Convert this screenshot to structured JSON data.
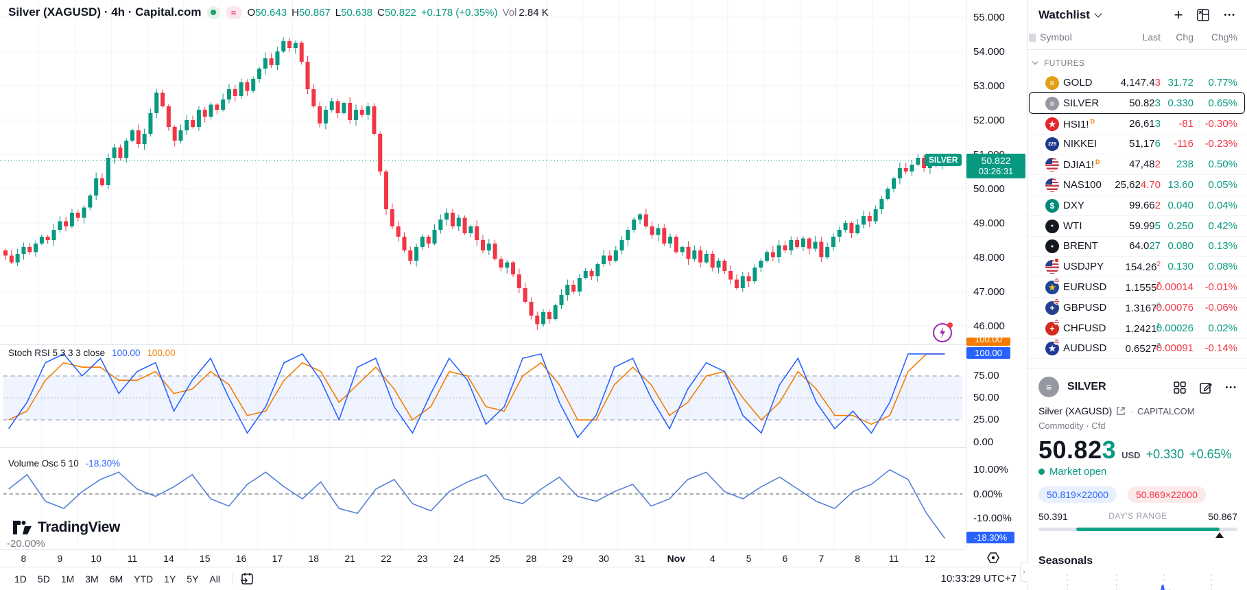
{
  "colors": {
    "up": "#089981",
    "down": "#f23645",
    "stoch_k": "#2962ff",
    "stoch_d": "#f57c00",
    "vol_line": "#5480d6",
    "grid": "#f0f3fa",
    "axis_line": "#e0e3eb",
    "text": "#131722",
    "muted": "#787b86",
    "band_fill": "rgba(41,98,255,0.07)",
    "blue_label": "#2962ff",
    "orange_label": "#f57c00"
  },
  "header": {
    "title": "Silver (XAGUSD) · 4h · Capital.com",
    "approx_glyph": "≈",
    "ohlc": [
      {
        "k": "O",
        "v": "50.643"
      },
      {
        "k": "H",
        "v": "50.867"
      },
      {
        "k": "L",
        "v": "50.638"
      },
      {
        "k": "C",
        "v": "50.822"
      }
    ],
    "change": "+0.178 (+0.35%)",
    "vol_label": "Vol",
    "vol_value": "2.84 K"
  },
  "chart_data": [
    {
      "id": "price",
      "type": "candlestick",
      "symbol": "SILVER",
      "timeframe": "4h",
      "ylim": [
        45.5,
        55.5
      ],
      "y_labels": [
        "55.000",
        "54.000",
        "53.000",
        "52.000",
        "51.000",
        "50.000",
        "49.000",
        "48.000",
        "47.000",
        "46.000"
      ],
      "last_price": "50.822",
      "countdown": "03:26:31",
      "last_price_value": 50.822,
      "first_open": 48.2,
      "closes": [
        48.05,
        47.85,
        48.1,
        48.3,
        48.15,
        48.4,
        48.6,
        48.5,
        48.8,
        49.05,
        48.9,
        49.3,
        49.15,
        49.45,
        49.8,
        50.3,
        50.1,
        50.9,
        51.2,
        50.9,
        51.4,
        51.7,
        51.3,
        51.6,
        52.2,
        52.8,
        52.4,
        51.8,
        51.4,
        51.7,
        52.0,
        51.8,
        52.3,
        52.1,
        52.45,
        52.3,
        52.6,
        52.9,
        52.7,
        53.1,
        52.85,
        53.2,
        53.5,
        53.8,
        53.6,
        54.0,
        54.3,
        54.1,
        54.25,
        53.7,
        52.9,
        52.4,
        51.9,
        52.3,
        52.55,
        52.2,
        52.5,
        52.0,
        52.3,
        52.15,
        52.4,
        51.6,
        50.5,
        49.4,
        48.9,
        48.6,
        48.2,
        47.9,
        48.3,
        48.6,
        48.4,
        48.8,
        49.1,
        49.3,
        48.9,
        49.15,
        48.7,
        48.9,
        48.5,
        48.2,
        48.4,
        47.95,
        47.7,
        47.85,
        47.5,
        47.1,
        46.7,
        46.3,
        46.05,
        46.4,
        46.2,
        46.6,
        46.9,
        47.2,
        47.0,
        47.4,
        47.6,
        47.45,
        47.8,
        48.05,
        47.9,
        48.2,
        48.5,
        48.8,
        49.1,
        49.25,
        48.9,
        48.65,
        48.85,
        48.4,
        48.6,
        48.15,
        48.3,
        47.95,
        48.2,
        47.85,
        48.1,
        47.7,
        47.9,
        47.6,
        47.35,
        47.1,
        47.45,
        47.3,
        47.7,
        47.9,
        48.15,
        48.0,
        48.35,
        48.2,
        48.5,
        48.3,
        48.55,
        48.25,
        48.45,
        48.0,
        48.3,
        48.6,
        48.8,
        49.0,
        48.7,
        48.95,
        49.2,
        49.05,
        49.4,
        49.7,
        50.0,
        50.3,
        50.6,
        50.5,
        50.7,
        50.9,
        50.6,
        50.75,
        50.7,
        50.822
      ]
    },
    {
      "id": "stoch_rsi",
      "type": "line",
      "title": "Stoch RSI 5 3 3 3 close",
      "k_value": "100.00",
      "d_value": "100.00",
      "range": [
        0,
        100
      ],
      "bands": {
        "upper": 75,
        "mid": 50,
        "lower": 25
      },
      "axis_labels": [
        "75.00",
        "50.00",
        "25.00",
        "0.00"
      ],
      "k_label": "100.00",
      "d_label": "100.00",
      "k": [
        15,
        45,
        90,
        100,
        75,
        95,
        55,
        80,
        90,
        35,
        70,
        95,
        50,
        10,
        40,
        90,
        100,
        70,
        25,
        85,
        95,
        40,
        10,
        55,
        95,
        70,
        20,
        40,
        95,
        100,
        45,
        5,
        30,
        85,
        95,
        50,
        15,
        60,
        90,
        80,
        30,
        10,
        65,
        95,
        45,
        15,
        35,
        10,
        45,
        100,
        100,
        100
      ],
      "d": [
        25,
        35,
        70,
        90,
        85,
        85,
        70,
        70,
        80,
        55,
        60,
        80,
        65,
        30,
        35,
        70,
        90,
        80,
        45,
        65,
        85,
        60,
        25,
        40,
        80,
        75,
        40,
        35,
        75,
        90,
        65,
        25,
        25,
        65,
        85,
        65,
        30,
        45,
        75,
        80,
        50,
        25,
        45,
        80,
        60,
        30,
        30,
        20,
        30,
        80,
        100,
        100
      ]
    },
    {
      "id": "volume_osc",
      "type": "line",
      "title": "Volume Osc 5 10",
      "current_label": "-18.30%",
      "current": -18.3,
      "axis_labels": [
        "10.00%",
        "0.00%",
        "-10.00%"
      ],
      "hidden_label": "-20.00%",
      "values": [
        2,
        8,
        -3,
        -6,
        1,
        6,
        9,
        2,
        -1,
        3,
        8,
        -2,
        -5,
        4,
        9,
        3,
        -2,
        5,
        -6,
        -8,
        2,
        6,
        -4,
        -7,
        1,
        5,
        8,
        -2,
        -4,
        2,
        7,
        -1,
        -3,
        1,
        4,
        -5,
        -2,
        6,
        9,
        1,
        -2,
        3,
        7,
        2,
        -3,
        -6,
        1,
        4,
        10,
        6,
        -8,
        -18.3
      ]
    }
  ],
  "time_axis": {
    "labels": [
      "8",
      "9",
      "10",
      "11",
      "14",
      "15",
      "16",
      "17",
      "18",
      "21",
      "22",
      "23",
      "24",
      "25",
      "28",
      "29",
      "30",
      "31",
      "Nov",
      "4",
      "5",
      "6",
      "7",
      "8",
      "11",
      "12"
    ],
    "bold_label": "Nov"
  },
  "toolbar": {
    "ranges": [
      "1D",
      "5D",
      "1M",
      "3M",
      "6M",
      "YTD",
      "1Y",
      "5Y",
      "All"
    ],
    "clock": "10:33:29 UTC+7"
  },
  "footer": {
    "logo_text": "TradingView"
  },
  "watchlist": {
    "title": "Watchlist",
    "icons": {
      "plus": "+",
      "more": "•••"
    },
    "columns": {
      "symbol": "Symbol",
      "last": "Last",
      "chg": "Chg",
      "chgp": "Chg%"
    },
    "section": "FUTURES",
    "rows": [
      {
        "symbol": "GOLD",
        "icon": {
          "kind": "circle",
          "bg": "#dfa018",
          "glyph": "≡"
        },
        "last": "4,147.4",
        "tail": "3",
        "tail_dir": "down",
        "sup": false,
        "chg": "31.72",
        "chgp": "0.77%",
        "dir": "up",
        "selected": false,
        "badge": ""
      },
      {
        "symbol": "SILVER",
        "icon": {
          "kind": "circle",
          "bg": "#9598a1",
          "glyph": "≡"
        },
        "last": "50.82",
        "tail": "3",
        "tail_dir": "up",
        "sup": false,
        "chg": "0.330",
        "chgp": "0.65%",
        "dir": "up",
        "selected": true,
        "badge": ""
      },
      {
        "symbol": "HSI1!",
        "icon": {
          "kind": "circle",
          "bg": "#e4252d",
          "glyph": "★"
        },
        "last": "26,61",
        "tail": "3",
        "tail_dir": "up",
        "sup": false,
        "chg": "-81",
        "chgp": "-0.30%",
        "dir": "down",
        "selected": false,
        "badge": "D"
      },
      {
        "symbol": "NIKKEI",
        "icon": {
          "kind": "circle",
          "bg": "#1e3a8a",
          "glyph": "225",
          "small": true
        },
        "last": "51,17",
        "tail": "6",
        "tail_dir": "up",
        "sup": false,
        "chg": "-116",
        "chgp": "-0.23%",
        "dir": "down",
        "selected": false,
        "badge": ""
      },
      {
        "symbol": "DJIA1!",
        "icon": {
          "kind": "usflag"
        },
        "last": "47,48",
        "tail": "2",
        "tail_dir": "down",
        "sup": false,
        "chg": "238",
        "chgp": "0.50%",
        "dir": "up",
        "selected": false,
        "badge": "D"
      },
      {
        "symbol": "NAS100",
        "icon": {
          "kind": "usflag"
        },
        "last": "25,62",
        "tail": "4.70",
        "tail_dir": "down",
        "sup": false,
        "chg": "13.60",
        "chgp": "0.05%",
        "dir": "up",
        "selected": false,
        "badge": ""
      },
      {
        "symbol": "DXY",
        "icon": {
          "kind": "circle",
          "bg": "#00897b",
          "glyph": "$"
        },
        "last": "99.66",
        "tail": "2",
        "tail_dir": "down",
        "sup": false,
        "chg": "0.040",
        "chgp": "0.04%",
        "dir": "up",
        "selected": false,
        "badge": ""
      },
      {
        "symbol": "WTI",
        "icon": {
          "kind": "circle",
          "bg": "#15181f",
          "glyph": "●",
          "small": true
        },
        "last": "59.99",
        "tail": "5",
        "tail_dir": "up",
        "sup": false,
        "chg": "0.250",
        "chgp": "0.42%",
        "dir": "up",
        "selected": false,
        "badge": ""
      },
      {
        "symbol": "BRENT",
        "icon": {
          "kind": "circle",
          "bg": "#15181f",
          "glyph": "●",
          "small": true
        },
        "last": "64.0",
        "tail": "27",
        "tail_dir": "up",
        "sup": false,
        "chg": "0.080",
        "chgp": "0.13%",
        "dir": "up",
        "selected": false,
        "badge": ""
      },
      {
        "symbol": "USDJPY",
        "icon": {
          "kind": "usflag",
          "badge": "jp"
        },
        "last": "154.26",
        "tail": "2",
        "tail_dir": "down",
        "sup": true,
        "chg": "0.130",
        "chgp": "0.08%",
        "dir": "up",
        "selected": false,
        "badge": ""
      },
      {
        "symbol": "EURUSD",
        "icon": {
          "kind": "circle",
          "bg": "#1f4396",
          "glyph": "★",
          "fg": "#f5c518",
          "badge": "us"
        },
        "last": "1.1555",
        "tail": "7",
        "tail_dir": "down",
        "sup": true,
        "chg": "-0.00014",
        "chgp": "-0.01%",
        "dir": "down",
        "selected": false,
        "badge2": ""
      },
      {
        "symbol": "GBPUSD",
        "icon": {
          "kind": "circle",
          "bg": "#27408b",
          "glyph": "+",
          "badge": "us"
        },
        "last": "1.3167",
        "tail": "6",
        "tail_dir": "up",
        "sup": true,
        "chg": "-0.00076",
        "chgp": "-0.06%",
        "dir": "down",
        "selected": false,
        "badge2": ""
      },
      {
        "symbol": "CHFUSD",
        "icon": {
          "kind": "circle",
          "bg": "#d52b1e",
          "glyph": "+",
          "badge": "us"
        },
        "last": "1.2421",
        "tail": "1",
        "tail_dir": "up",
        "sup": true,
        "chg": "0.00026",
        "chgp": "0.02%",
        "dir": "up",
        "selected": false,
        "badge2": ""
      },
      {
        "symbol": "AUDUSD",
        "icon": {
          "kind": "circle",
          "bg": "#1f3a93",
          "glyph": "★",
          "badge": "us"
        },
        "last": "0.6527",
        "tail": "2",
        "tail_dir": "up",
        "sup": true,
        "chg": "-0.00091",
        "chgp": "-0.14%",
        "dir": "down",
        "selected": false,
        "badge2": ""
      }
    ]
  },
  "detail": {
    "symbol": "SILVER",
    "icon_glyph": "≡",
    "name": "Silver (XAGUSD)",
    "source": "CAPITALCOM",
    "type_line": "Commodity · Cfd",
    "price_main": "50.82",
    "price_tail": "3",
    "currency": "USD",
    "chg": "+0.330",
    "chgp": "+0.65%",
    "market_status": "Market open",
    "bid": "50.819×22000",
    "ask": "50.869×22000",
    "range_low": "50.391",
    "range_caption": "DAY'S RANGE",
    "range_high": "50.867",
    "range_fill_start_pct": 19,
    "range_fill_end_pct": 91,
    "seasonals_title": "Seasonals"
  }
}
